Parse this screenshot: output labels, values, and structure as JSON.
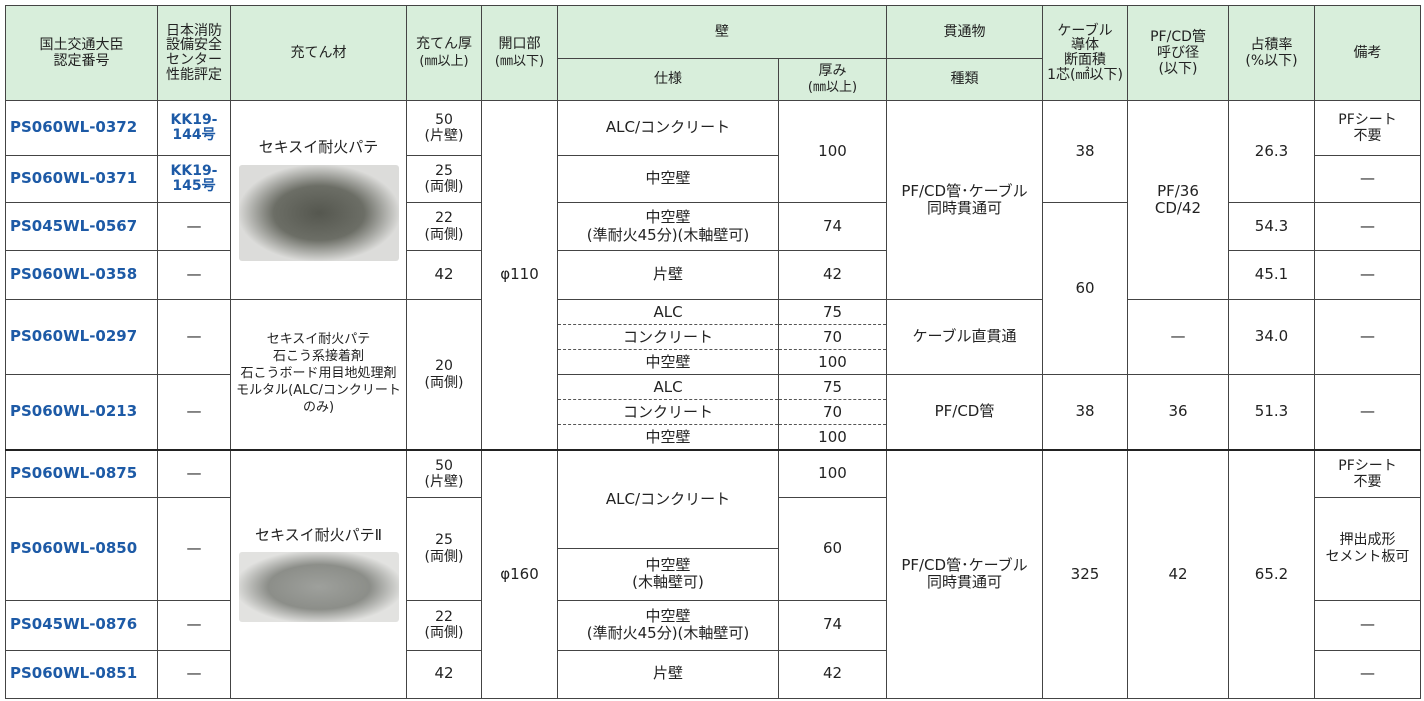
{
  "header": {
    "cert": "国土交通大臣\n認定番号",
    "eval": "日本消防\n設備安全\nセンター\n性能評定",
    "filler": "充てん材",
    "fill_thick": "充てん厚",
    "fill_thick_unit": "(㎜以上)",
    "opening": "開口部",
    "opening_unit": "(㎜以下)",
    "wall": "壁",
    "wall_spec": "仕様",
    "wall_thick": "厚み",
    "wall_thick_unit": "(㎜以上)",
    "pen": "貫通物",
    "pen_type": "種類",
    "cable": "ケーブル\n導体\n断面積\n1芯(㎟以下)",
    "pipe": "PF/CD管\n呼び径\n(以下)",
    "ratio": "占積率\n(%以下)",
    "note": "備考"
  },
  "rows": [
    {
      "cert": "PS060WL-0372",
      "eval": "KK19-\n144号",
      "filler": "セキスイ耐火パテ",
      "fill_thick": "50",
      "fill_note": "(片壁)",
      "opening": "φ110",
      "wall_spec": "ALC/コンクリート",
      "wall_thick": "100",
      "pen": "PF/CD管･ケーブル\n同時貫通可",
      "cable": "38",
      "pipe": "PF/36\nCD/42",
      "ratio": "26.3",
      "note": "PFシート\n不要"
    },
    {
      "cert": "PS060WL-0371",
      "eval": "KK19-\n145号",
      "fill_thick": "25",
      "fill_note": "(両側)",
      "wall_spec": "中空壁",
      "note": "—"
    },
    {
      "cert": "PS045WL-0567",
      "eval": "—",
      "fill_thick": "22",
      "fill_note": "(両側)",
      "wall_spec": "中空壁\n(準耐火45分)(木軸壁可)",
      "wall_thick": "74",
      "cable": "60",
      "ratio": "54.3",
      "note": "—"
    },
    {
      "cert": "PS060WL-0358",
      "eval": "—",
      "fill_thick": "42",
      "wall_spec": "片壁",
      "wall_thick": "42",
      "ratio": "45.1",
      "note": "—"
    },
    {
      "cert": "PS060WL-0297",
      "eval": "—",
      "filler": "セキスイ耐火パテ\n石こう系接着剤\n石こうボード用目地処理剤\nモルタル(ALC/コンクリートのみ)",
      "fill_thick": "20",
      "fill_note": "(両側)",
      "wall_spec": [
        "ALC",
        "コンクリート",
        "中空壁"
      ],
      "wall_thick": [
        "75",
        "70",
        "100"
      ],
      "pen": "ケーブル直貫通",
      "pipe": "—",
      "ratio": "34.0",
      "note": "—"
    },
    {
      "cert": "PS060WL-0213",
      "eval": "—",
      "wall_spec": [
        "ALC",
        "コンクリート",
        "中空壁"
      ],
      "wall_thick": [
        "75",
        "70",
        "100"
      ],
      "pen": "PF/CD管",
      "cable": "38",
      "pipe": "36",
      "ratio": "51.3",
      "note": "—"
    },
    {
      "cert": "PS060WL-0875",
      "eval": "—",
      "filler": "セキスイ耐火パテⅡ",
      "fill_thick": "50",
      "fill_note": "(片壁)",
      "opening": "φ160",
      "wall_spec": "ALC/コンクリート",
      "wall_thick": "100",
      "pen": "PF/CD管･ケーブル\n同時貫通可",
      "cable": "325",
      "pipe": "42",
      "ratio": "65.2",
      "note": "PFシート\n不要"
    },
    {
      "cert": "PS060WL-0850",
      "eval": "—",
      "fill_thick": "25",
      "fill_note": "(両側)",
      "wall_thick": "60",
      "note": "押出成形\nセメント板可"
    },
    {
      "wall_spec": "中空壁\n(木軸壁可)"
    },
    {
      "cert": "PS045WL-0876",
      "eval": "—",
      "fill_thick": "22",
      "fill_note": "(両側)",
      "wall_spec": "中空壁\n(準耐火45分)(木軸壁可)",
      "wall_thick": "74",
      "note": "—"
    },
    {
      "cert": "PS060WL-0851",
      "eval": "—",
      "fill_thick": "42",
      "wall_spec": "片壁",
      "wall_thick": "42",
      "note": "—"
    }
  ]
}
